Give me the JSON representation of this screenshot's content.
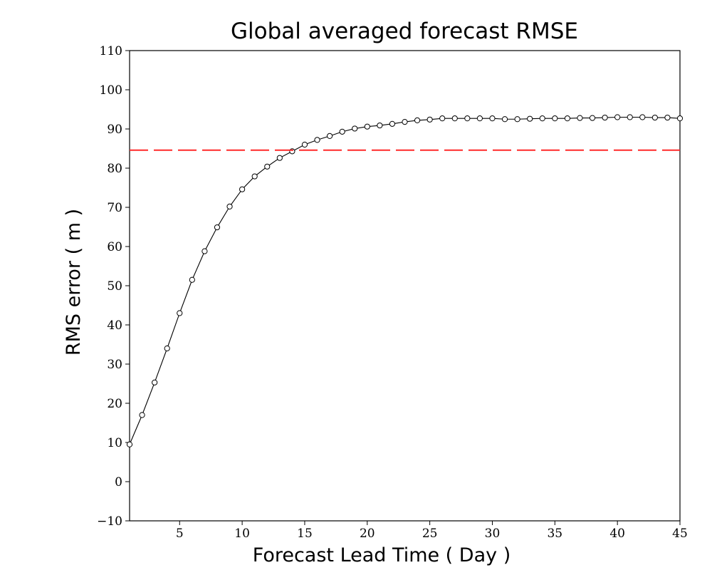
{
  "chart_data": {
    "type": "line",
    "title": "Global averaged forecast RMSE",
    "xlabel": "Forecast Lead Time ( Day )",
    "ylabel": "RMS error ( m )",
    "xlim": [
      1,
      45
    ],
    "ylim": [
      -10,
      110
    ],
    "xticks": [
      5,
      10,
      15,
      20,
      25,
      30,
      35,
      40,
      45
    ],
    "yticks": [
      -10,
      0,
      10,
      20,
      30,
      40,
      50,
      60,
      70,
      80,
      90,
      100,
      110
    ],
    "grid": false,
    "legend": "none",
    "series": [
      {
        "color": "#000000",
        "marker": "open-circle",
        "line": "solid",
        "x": [
          1,
          2,
          3,
          4,
          5,
          6,
          7,
          8,
          9,
          10,
          11,
          12,
          13,
          14,
          15,
          16,
          17,
          18,
          19,
          20,
          21,
          22,
          23,
          24,
          25,
          26,
          27,
          28,
          29,
          30,
          31,
          32,
          33,
          34,
          35,
          36,
          37,
          38,
          39,
          40,
          41,
          42,
          43,
          44,
          45
        ],
        "values": [
          9.5,
          17.0,
          25.3,
          34.0,
          43.0,
          51.5,
          58.8,
          64.9,
          70.2,
          74.6,
          77.9,
          80.4,
          82.6,
          84.3,
          86.0,
          87.2,
          88.2,
          89.3,
          90.1,
          90.6,
          90.9,
          91.3,
          91.8,
          92.2,
          92.4,
          92.7,
          92.7,
          92.7,
          92.7,
          92.7,
          92.5,
          92.5,
          92.6,
          92.7,
          92.7,
          92.7,
          92.8,
          92.8,
          92.9,
          93.0,
          93.0,
          93.0,
          92.9,
          92.9,
          92.7
        ]
      },
      {
        "color": "#ff2a2a",
        "line": "dashed",
        "x": [
          1,
          45
        ],
        "values": [
          84.6,
          84.6
        ]
      }
    ]
  }
}
